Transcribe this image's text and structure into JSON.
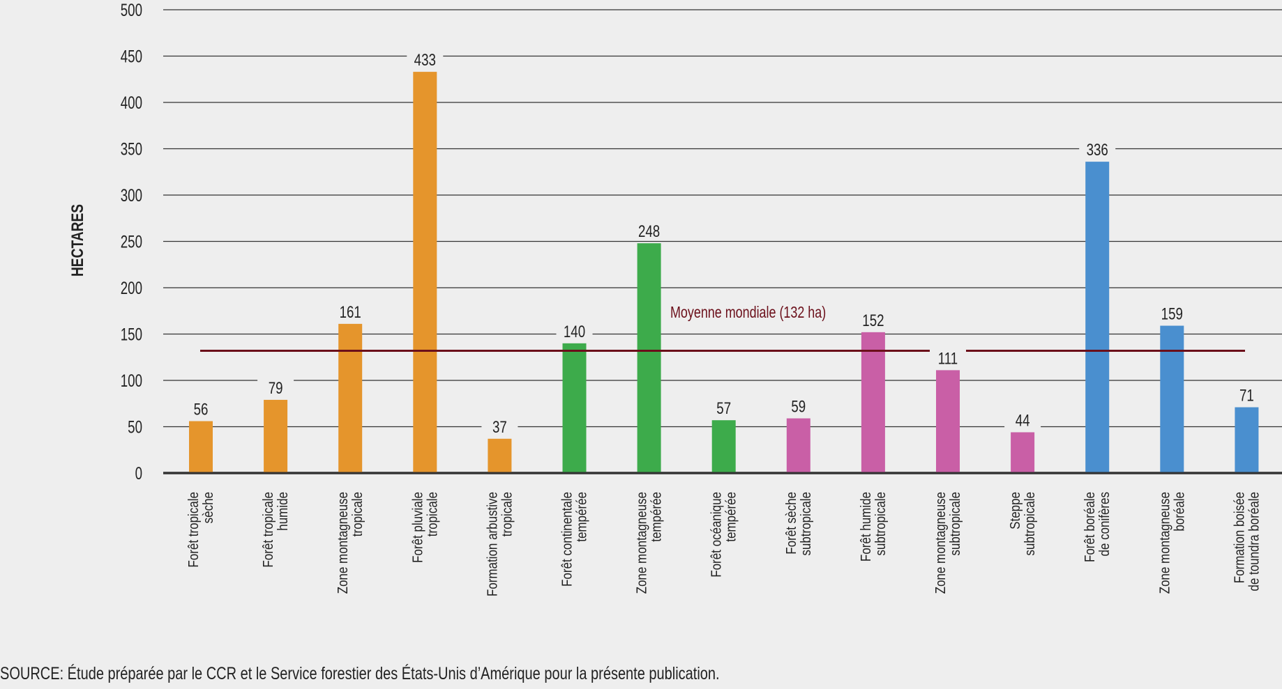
{
  "chart_data": {
    "type": "bar",
    "ylabel": "HECTARES",
    "ylim": [
      0,
      500
    ],
    "yticks": [
      0,
      50,
      100,
      150,
      200,
      250,
      300,
      350,
      400,
      450,
      500
    ],
    "grid": true,
    "categories": [
      [
        "Forêt tropicale",
        "sèche"
      ],
      [
        "Forêt tropicale",
        "humide"
      ],
      [
        "Zone montagneuse",
        "tropicale"
      ],
      [
        "Forêt pluviale",
        "tropicale"
      ],
      [
        "Formation arbustive",
        "tropicale"
      ],
      [
        "Forêt continentale",
        "tempérée"
      ],
      [
        "Zone montagneuse",
        "tempérée"
      ],
      [
        "Forêt océanique",
        "tempérée"
      ],
      [
        "Forêt sèche",
        "subtropicale"
      ],
      [
        "Forêt humide",
        "subtropicale"
      ],
      [
        "Zone montagneuse",
        "subtropicale"
      ],
      [
        "Steppe",
        "subtropicale"
      ],
      [
        "Forêt boréale",
        "de conifères"
      ],
      [
        "Zone montagneuse",
        "boréale"
      ],
      [
        "Formation boisée",
        "de toundra boréale"
      ]
    ],
    "values": [
      56,
      79,
      161,
      433,
      37,
      140,
      248,
      57,
      59,
      152,
      111,
      44,
      336,
      159,
      71
    ],
    "bar_colors": [
      "#e5952c",
      "#e5952c",
      "#e5952c",
      "#e5952c",
      "#e5952c",
      "#3dab4b",
      "#3dab4b",
      "#3dab4b",
      "#c95fa6",
      "#c95fa6",
      "#c95fa6",
      "#c95fa6",
      "#4a8fcf",
      "#4a8fcf",
      "#4a8fcf"
    ],
    "reference_line": {
      "value": 132,
      "label": "Moyenne mondiale (132 ha)",
      "color": "#6b0f1a"
    }
  },
  "source": "SOURCE: Étude préparée par le CCR et le Service forestier des États-Unis d’Amérique pour la présente publication."
}
